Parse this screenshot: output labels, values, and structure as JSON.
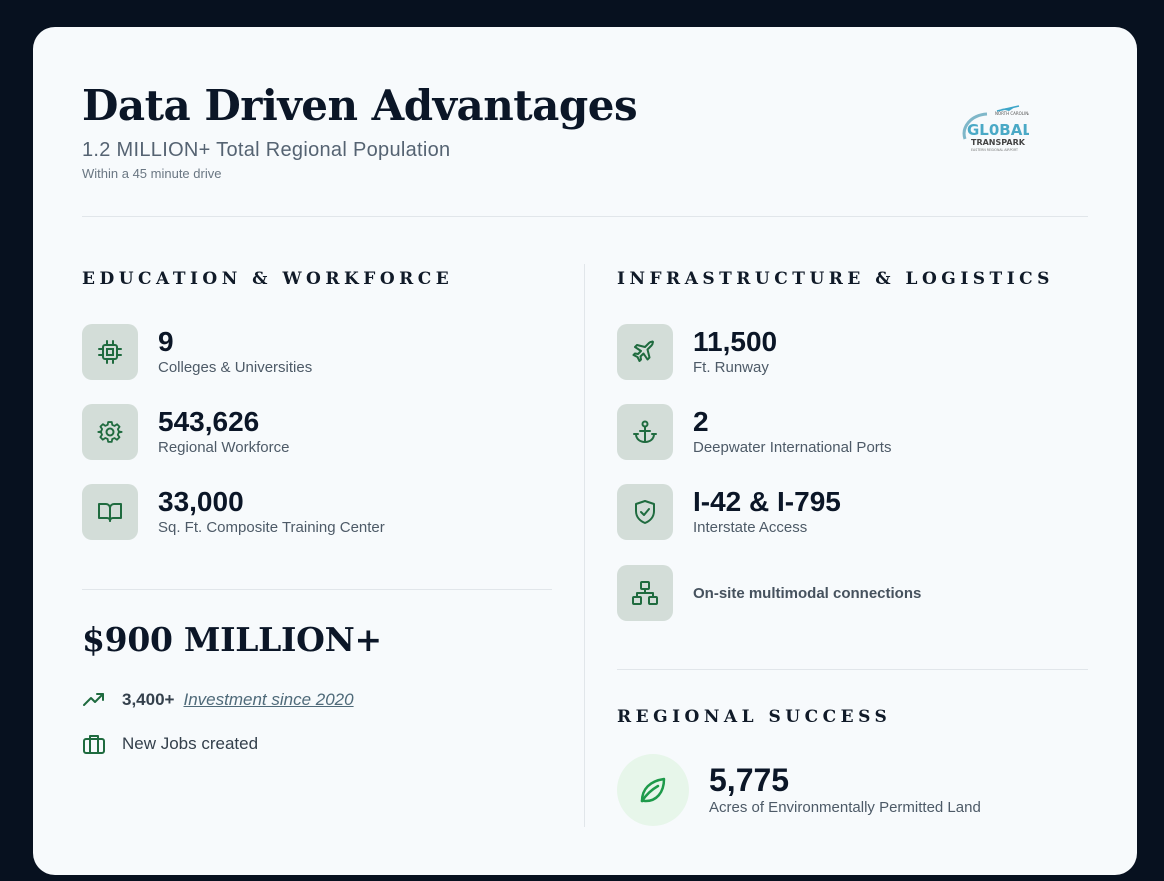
{
  "header": {
    "title": "Data Driven Advantages",
    "subtitle": "1.2 MILLION+ Total Regional Population",
    "note": "Within a 45 minute drive"
  },
  "logo": {
    "line1": "NORTH CAROLINA",
    "line2": "GL0BAL",
    "line3": "TRANSPARK",
    "line4": "EASTERN REGIONAL AIRPORT"
  },
  "education": {
    "heading": "EDUCATION & WORKFORCE",
    "stats": [
      {
        "value": "9",
        "label": "Colleges & Universities",
        "icon": "chip-icon"
      },
      {
        "value": "543,626",
        "label": "Regional Workforce",
        "icon": "gear-icon"
      },
      {
        "value": "33,000",
        "label": "Sq. Ft. Composite Training Center",
        "icon": "book-icon"
      }
    ]
  },
  "investment": {
    "headline": "$900 MILLION+",
    "jobs_count": "3,400+",
    "investment_link": "Investment since 2020",
    "jobs_label": "New Jobs created"
  },
  "infrastructure": {
    "heading": "INFRASTRUCTURE & LOGISTICS",
    "stats": [
      {
        "value": "11,500",
        "label": "Ft. Runway",
        "icon": "plane-icon"
      },
      {
        "value": "2",
        "label": "Deepwater International Ports",
        "icon": "anchor-icon"
      },
      {
        "value": "I-42 & I-795",
        "label": "Interstate Access",
        "icon": "shield-check-icon"
      },
      {
        "value": "",
        "label": "On-site multimodal connections",
        "icon": "network-icon"
      }
    ]
  },
  "regional": {
    "heading": "REGIONAL SUCCESS",
    "value": "5,775",
    "label": "Acres of Environmentally Permitted Land",
    "icon": "leaf-icon"
  },
  "colors": {
    "card_bg": "#f7fafc",
    "page_bg": "#07111f",
    "icon_bg": "#d3ddd8",
    "icon_green": "#1f6b3f",
    "leaf_green": "#1e9a4a"
  }
}
